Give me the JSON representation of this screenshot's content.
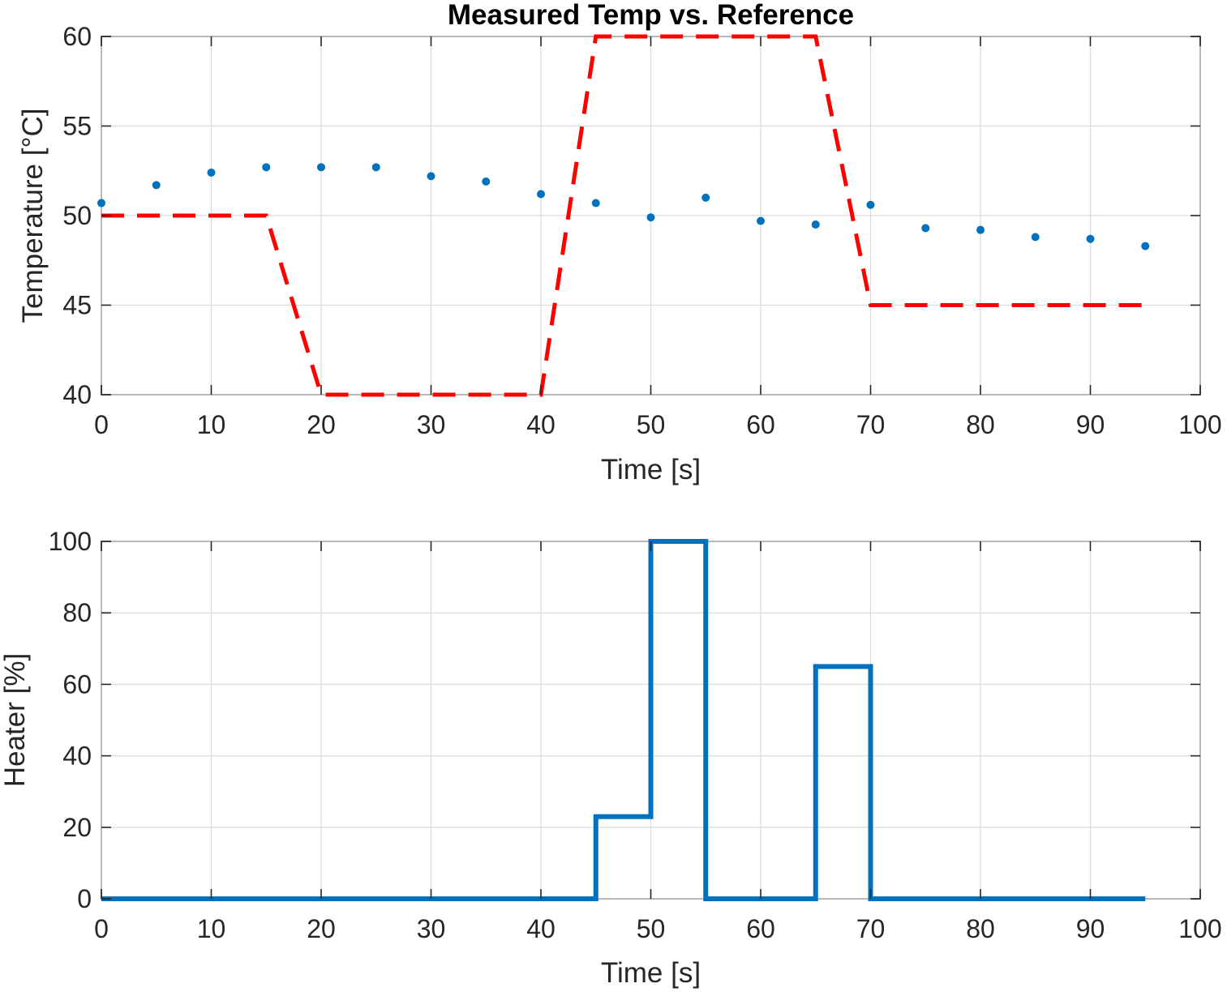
{
  "chart_data": [
    {
      "type": "line",
      "title": "Measured Temp vs. Reference",
      "xlabel": "Time [s]",
      "ylabel": "Temperature [°C]",
      "xlim": [
        0,
        100
      ],
      "ylim": [
        40,
        60
      ],
      "xticks": [
        0,
        10,
        20,
        30,
        40,
        50,
        60,
        70,
        80,
        90,
        100
      ],
      "yticks": [
        40,
        45,
        50,
        55,
        60
      ],
      "grid": true,
      "series": [
        {
          "style": "markers",
          "color": "#0072BD",
          "x": [
            0,
            5,
            10,
            15,
            20,
            25,
            30,
            35,
            40,
            45,
            50,
            55,
            60,
            65,
            70,
            75,
            80,
            85,
            90,
            95
          ],
          "y": [
            50.7,
            51.7,
            52.4,
            52.7,
            52.7,
            52.7,
            52.2,
            51.9,
            51.2,
            50.7,
            49.9,
            51.0,
            49.7,
            49.5,
            50.6,
            49.3,
            49.2,
            48.8,
            48.7,
            48.3
          ]
        },
        {
          "style": "dashed",
          "color": "#FF0000",
          "x": [
            0,
            15,
            20,
            40,
            45,
            65,
            70,
            95
          ],
          "y": [
            50,
            50,
            40,
            40,
            60,
            60,
            45,
            45
          ]
        }
      ]
    },
    {
      "type": "line",
      "title": "",
      "xlabel": "Time [s]",
      "ylabel": "Heater [%]",
      "xlim": [
        0,
        100
      ],
      "ylim": [
        0,
        100
      ],
      "xticks": [
        0,
        10,
        20,
        30,
        40,
        50,
        60,
        70,
        80,
        90,
        100
      ],
      "yticks": [
        0,
        20,
        40,
        60,
        80,
        100
      ],
      "grid": true,
      "series": [
        {
          "style": "stairs",
          "color": "#0072BD",
          "x": [
            0,
            5,
            10,
            15,
            20,
            25,
            30,
            35,
            40,
            45,
            50,
            55,
            60,
            65,
            70,
            75,
            80,
            85,
            90,
            95
          ],
          "y": [
            0,
            0,
            0,
            0,
            0,
            0,
            0,
            0,
            0,
            23,
            100,
            0,
            0,
            65,
            0,
            0,
            0,
            0,
            0,
            0
          ]
        }
      ]
    }
  ]
}
